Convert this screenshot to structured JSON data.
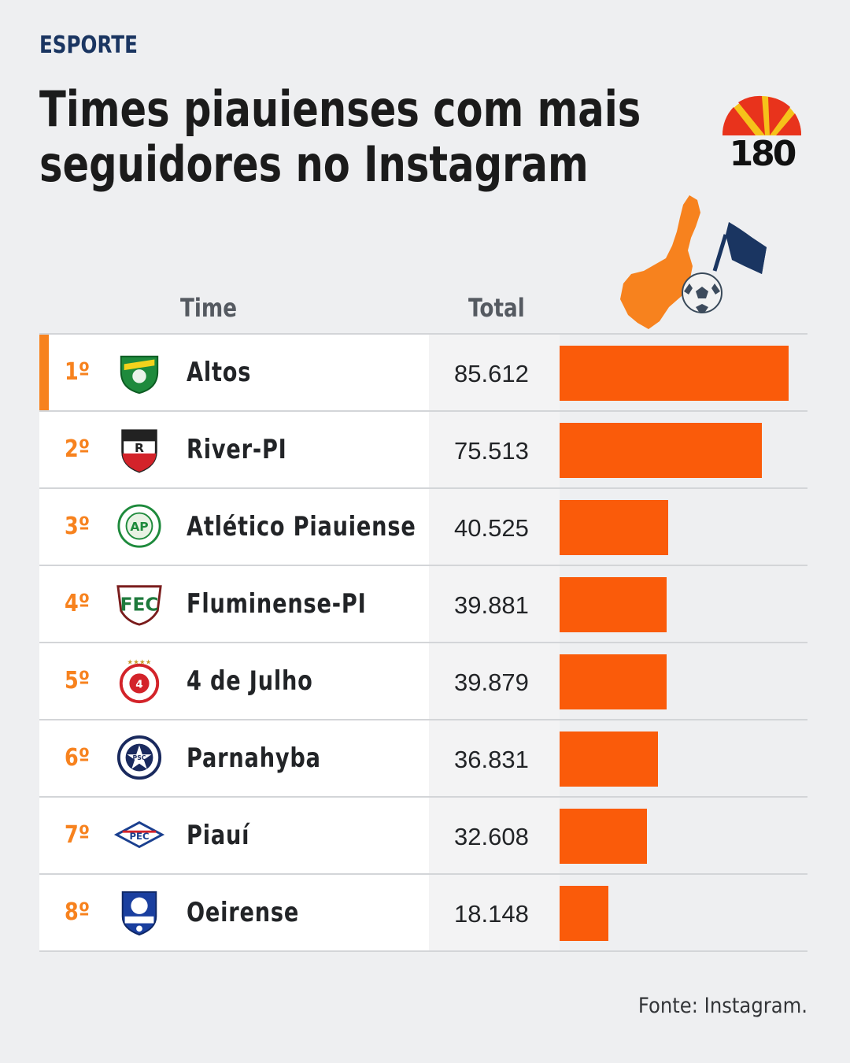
{
  "header": {
    "category": "ESPORTE",
    "title_line1": "Times piauienses com mais",
    "title_line2": "seguidores no Instagram",
    "logo_text": "180"
  },
  "columns": {
    "team": "Time",
    "total": "Total"
  },
  "colors": {
    "accent": "#f7821e",
    "bar": "#fa5b0a",
    "category": "#1a3561"
  },
  "chart_data": {
    "type": "bar",
    "orientation": "horizontal",
    "categories": [
      "Altos",
      "River-PI",
      "Atlético Piauiense",
      "Fluminense-PI",
      "4 de Julho",
      "Parnahyba",
      "Piauí",
      "Oeirense"
    ],
    "values": [
      85612,
      75513,
      40525,
      39881,
      39879,
      36831,
      32608,
      18148
    ],
    "value_labels": [
      "85.612",
      "75.513",
      "40.525",
      "39.881",
      "39.879",
      "36.831",
      "32.608",
      "18.148"
    ],
    "ranks": [
      "1º",
      "2º",
      "3º",
      "4º",
      "5º",
      "6º",
      "7º",
      "8º"
    ],
    "crest_icons": [
      "altos-crest-icon",
      "river-crest-icon",
      "atletico-crest-icon",
      "fluminense-crest-icon",
      "quatro-de-julho-crest-icon",
      "parnahyba-crest-icon",
      "piaui-crest-icon",
      "oeirense-crest-icon"
    ],
    "xlim": [
      0,
      85612
    ]
  },
  "footer": {
    "source": "Fonte: Instagram."
  }
}
